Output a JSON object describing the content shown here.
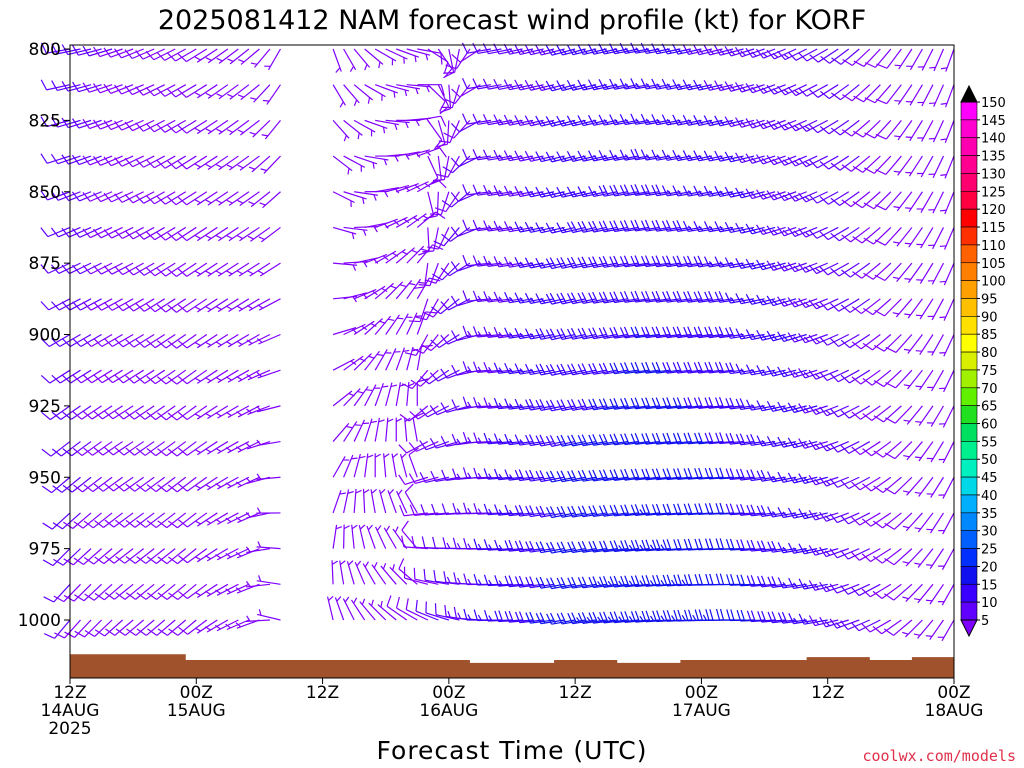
{
  "chart_data": {
    "type": "wind_barb_profile",
    "title": "2025081412 NAM forecast wind profile (kt) for KORF",
    "xlabel": "Forecast Time (UTC)",
    "ylabel": "",
    "credit": "coolwx.com/models",
    "y_axis": {
      "unit": "hPa",
      "inverted": true,
      "ylim": [
        800,
        1000
      ],
      "ticks": [
        800,
        825,
        850,
        875,
        900,
        925,
        950,
        975,
        1000
      ],
      "levels": [
        800,
        825,
        850,
        875,
        900,
        925,
        950,
        975,
        1000
      ]
    },
    "x_axis": {
      "unit": "forecast hour",
      "xlim": [
        0,
        84
      ],
      "ticks": [
        {
          "hour": 0,
          "line1": "12Z",
          "line2": "14AUG",
          "line3": "2025"
        },
        {
          "hour": 12,
          "line1": "00Z",
          "line2": "15AUG",
          "line3": ""
        },
        {
          "hour": 24,
          "line1": "12Z",
          "line2": "",
          "line3": ""
        },
        {
          "hour": 36,
          "line1": "00Z",
          "line2": "16AUG",
          "line3": ""
        },
        {
          "hour": 48,
          "line1": "12Z",
          "line2": "",
          "line3": ""
        },
        {
          "hour": 60,
          "line1": "00Z",
          "line2": "17AUG",
          "line3": ""
        },
        {
          "hour": 72,
          "line1": "12Z",
          "line2": "",
          "line3": ""
        },
        {
          "hour": 84,
          "line1": "00Z",
          "line2": "18AUG",
          "line3": ""
        }
      ]
    },
    "colorbar": {
      "unit": "kt",
      "values": [
        5,
        10,
        15,
        20,
        25,
        30,
        35,
        40,
        45,
        50,
        55,
        60,
        65,
        70,
        75,
        80,
        85,
        90,
        95,
        100,
        105,
        110,
        115,
        120,
        125,
        130,
        135,
        140,
        145,
        150
      ],
      "colors": [
        "#8000ff",
        "#6000ff",
        "#3a00ff",
        "#1010f0",
        "#0030ff",
        "#0060ff",
        "#0088ff",
        "#00b0ff",
        "#00d8e8",
        "#00f0c0",
        "#00f090",
        "#00e060",
        "#20e020",
        "#60f000",
        "#a0f000",
        "#d8f000",
        "#ffff00",
        "#ffe000",
        "#ffc000",
        "#ffa000",
        "#ff8000",
        "#ff6000",
        "#ff3000",
        "#ff0000",
        "#ff0040",
        "#ff0070",
        "#ff0090",
        "#ff00b0",
        "#ff00d0",
        "#ff00ff"
      ],
      "under_color": "#8000ff",
      "over_color": "#000000"
    },
    "wind_profile": {
      "time_step_hours": 1,
      "keyframes": [
        {
          "hour": 0,
          "low": {
            "dir": 220,
            "spd": 10
          },
          "high": {
            "dir": 260,
            "spd": 12
          }
        },
        {
          "hour": 6,
          "low": {
            "dir": 230,
            "spd": 9
          },
          "high": {
            "dir": 250,
            "spd": 9
          }
        },
        {
          "hour": 12,
          "low": {
            "dir": 230,
            "spd": 8
          },
          "high": {
            "dir": 240,
            "spd": 8
          }
        },
        {
          "hour": 18,
          "low": {
            "dir": 250,
            "spd": 6
          },
          "high": {
            "dir": 230,
            "spd": 6
          }
        },
        {
          "hour": 21,
          "low": {
            "dir": 300,
            "spd": 5
          },
          "high": {
            "dir": 200,
            "spd": 4
          }
        },
        {
          "hour": 23,
          "low": {
            "dir": 360,
            "spd": 3
          },
          "high": {
            "dir": 180,
            "spd": 3
          }
        },
        {
          "hour": 26,
          "low": {
            "dir": 340,
            "spd": 4
          },
          "high": {
            "dir": 150,
            "spd": 4
          }
        },
        {
          "hour": 29,
          "low": {
            "dir": 320,
            "spd": 6
          },
          "high": {
            "dir": 120,
            "spd": 5
          }
        },
        {
          "hour": 33,
          "low": {
            "dir": 300,
            "spd": 8
          },
          "high": {
            "dir": 100,
            "spd": 8
          }
        },
        {
          "hour": 40,
          "low": {
            "dir": 270,
            "spd": 15
          },
          "high": {
            "dir": 260,
            "spd": 10
          }
        },
        {
          "hour": 48,
          "low": {
            "dir": 260,
            "spd": 22
          },
          "high": {
            "dir": 255,
            "spd": 15
          }
        },
        {
          "hour": 56,
          "low": {
            "dir": 265,
            "spd": 24
          },
          "high": {
            "dir": 260,
            "spd": 16
          }
        },
        {
          "hour": 64,
          "low": {
            "dir": 270,
            "spd": 22
          },
          "high": {
            "dir": 255,
            "spd": 14
          }
        },
        {
          "hour": 72,
          "low": {
            "dir": 260,
            "spd": 16
          },
          "high": {
            "dir": 240,
            "spd": 12
          }
        },
        {
          "hour": 78,
          "low": {
            "dir": 240,
            "spd": 9
          },
          "high": {
            "dir": 220,
            "spd": 8
          }
        },
        {
          "hour": 84,
          "low": {
            "dir": 210,
            "spd": 5
          },
          "high": {
            "dir": 200,
            "spd": 6
          }
        }
      ],
      "missing_hours": [
        21,
        22,
        23,
        24
      ]
    },
    "terrain": {
      "color": "#a0522d",
      "surface_pressure_hpa": [
        {
          "hour": 0,
          "p": 1012
        },
        {
          "hour": 8,
          "p": 1012
        },
        {
          "hour": 11,
          "p": 1014
        },
        {
          "hour": 22,
          "p": 1014
        },
        {
          "hour": 30,
          "p": 1014
        },
        {
          "hour": 38,
          "p": 1015
        },
        {
          "hour": 46,
          "p": 1014
        },
        {
          "hour": 52,
          "p": 1015
        },
        {
          "hour": 58,
          "p": 1014
        },
        {
          "hour": 66,
          "p": 1014
        },
        {
          "hour": 70,
          "p": 1013
        },
        {
          "hour": 76,
          "p": 1014
        },
        {
          "hour": 80,
          "p": 1013
        },
        {
          "hour": 84,
          "p": 1012
        }
      ],
      "bottom_hpa": 1022
    }
  }
}
